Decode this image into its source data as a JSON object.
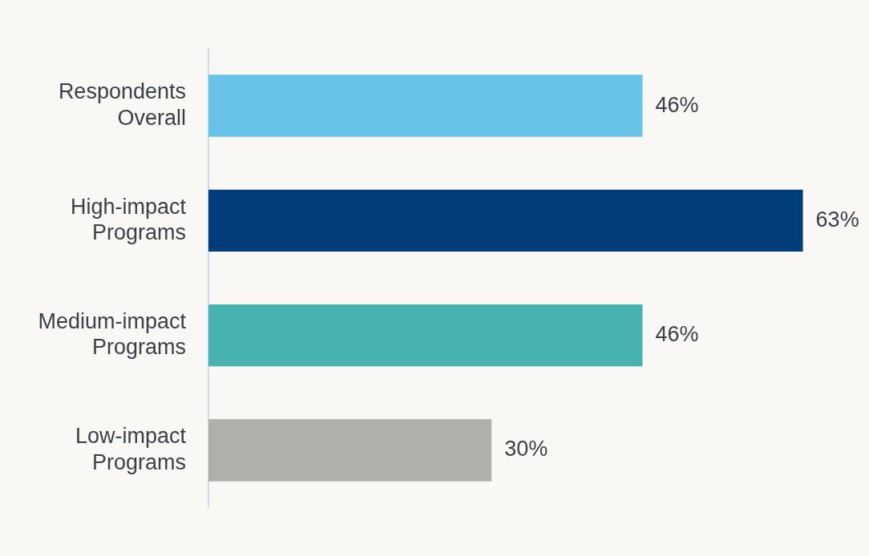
{
  "chart_data": {
    "type": "bar",
    "orientation": "horizontal",
    "categories": [
      "Respondents Overall",
      "High-impact Programs",
      "Medium-impact Programs",
      "Low-impact Programs"
    ],
    "values": [
      46,
      63,
      46,
      30
    ],
    "colors": [
      "#68c3e8",
      "#003d7a",
      "#47b3b0",
      "#b0afaa"
    ],
    "value_labels": [
      "46%",
      "63%",
      "46%",
      "30%"
    ],
    "xlim": [
      0,
      70
    ],
    "legend": false
  }
}
